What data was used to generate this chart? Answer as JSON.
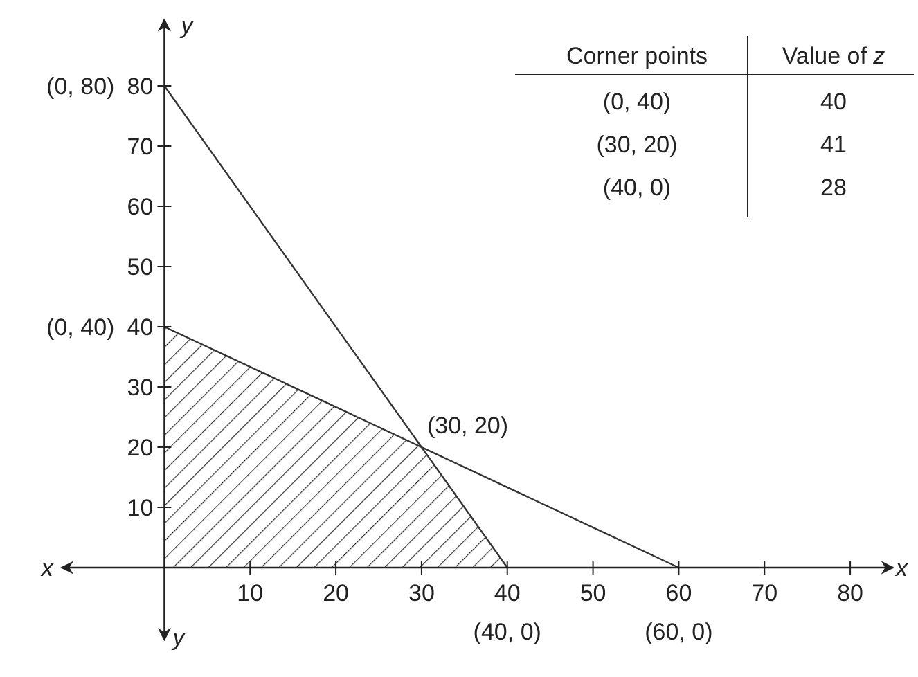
{
  "chart_data": [
    {
      "type": "line",
      "xlabel": "x",
      "ylabel": "y",
      "xlim": [
        -12,
        85
      ],
      "ylim": [
        -12,
        91
      ],
      "xticks": [
        10,
        20,
        30,
        40,
        50,
        60,
        70,
        80
      ],
      "yticks": [
        10,
        20,
        30,
        40,
        50,
        60,
        70,
        80
      ],
      "grid": false,
      "marker": "none",
      "line_style": "solid",
      "series": [
        {
          "type": "line",
          "color": "#333333",
          "x": [
            0,
            40
          ],
          "values": [
            80,
            0
          ]
        },
        {
          "type": "line",
          "color": "#333333",
          "x": [
            0,
            60
          ],
          "values": [
            40,
            0
          ]
        },
        {
          "type": "area",
          "color": "#333333",
          "x": [
            0,
            30,
            40
          ],
          "values": [
            40,
            20,
            0
          ]
        }
      ],
      "annotations": [
        {
          "text": "(0, 80)",
          "x": 0,
          "y": 80
        },
        {
          "text": "(0, 40)",
          "x": 0,
          "y": 40
        },
        {
          "text": "(30, 20)",
          "x": 30,
          "y": 20
        },
        {
          "text": "(40, 0)",
          "x": 40,
          "y": 0
        },
        {
          "text": "(60, 0)",
          "x": 60,
          "y": 0
        },
        "x",
        "y"
      ]
    },
    {
      "type": "other",
      "xlabel": "Corner points",
      "ylabel": "Value of z",
      "categories": [
        "(0, 40)",
        "(30, 20)",
        "(40, 0)"
      ],
      "values": [
        40,
        41,
        28
      ],
      "data_labels": true
    }
  ]
}
